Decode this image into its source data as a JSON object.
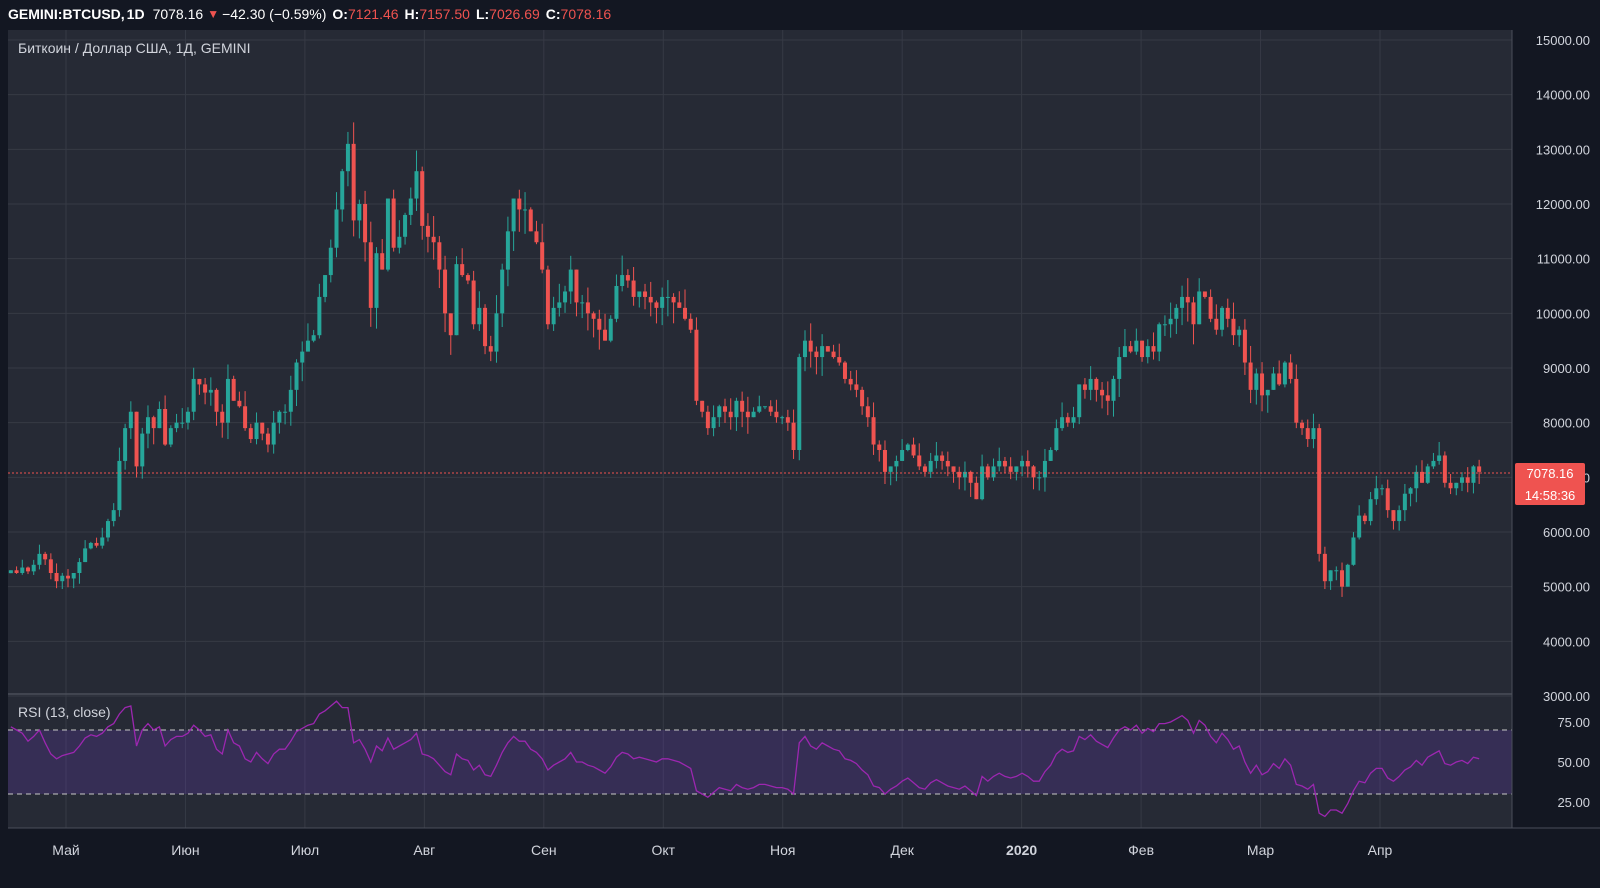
{
  "header": {
    "symbol": "GEMINI:BTCUSD,",
    "timeframe": "1D",
    "last": "7078.16",
    "change": "−42.30 (−0.59%)",
    "open_label": "O:",
    "open": "7121.46",
    "high_label": "H:",
    "high": "7157.50",
    "low_label": "L:",
    "low": "7026.69",
    "close_label": "C:",
    "close": "7078.16",
    "change_direction_icon": "triangle-down-icon"
  },
  "colors": {
    "background": "#131722",
    "up": "#26a69a",
    "down": "#ef5350",
    "grid": "#363a45",
    "text": "#d1d4dc",
    "rsi_line": "#9c27b0",
    "rsi_band": "rgba(103,58,183,0.25)"
  },
  "chart_data": [
    {
      "type": "candlestick",
      "title": "Биткоин / Доллар США, 1Д, GEMINI",
      "y_ticks": [
        "15000.00",
        "14000.00",
        "13000.00",
        "12000.00",
        "11000.00",
        "10000.00",
        "9000.00",
        "8000.00",
        "7000.00",
        "6000.00",
        "5000.00",
        "4000.00",
        "3000.00"
      ],
      "ylim": [
        3000,
        15000
      ],
      "x_ticks": [
        "Май",
        "Июн",
        "Июл",
        "Авг",
        "Сен",
        "Окт",
        "Ноя",
        "Дек",
        "2020",
        "Фев",
        "Мар",
        "Апр"
      ],
      "last_price_label": "7078.16",
      "countdown_label": "14:58:36",
      "grid": true,
      "closes": [
        5300,
        5250,
        5350,
        5280,
        5400,
        5600,
        5500,
        5250,
        5100,
        5200,
        5150,
        5250,
        5450,
        5700,
        5800,
        5750,
        5900,
        6200,
        6400,
        7300,
        7900,
        8200,
        7200,
        7800,
        8100,
        7900,
        8250,
        7600,
        7900,
        8000,
        8000,
        8200,
        8800,
        8700,
        8550,
        8600,
        8200,
        8000,
        8800,
        8400,
        8300,
        7900,
        7700,
        8000,
        7800,
        7600,
        8000,
        8200,
        8200,
        8600,
        9100,
        9300,
        9500,
        9600,
        10300,
        10700,
        11200,
        11900,
        12600,
        13100,
        11700,
        12000,
        11300,
        10100,
        11100,
        10800,
        12100,
        11200,
        11400,
        11800,
        12100,
        12600,
        11600,
        11400,
        11300,
        10800,
        10000,
        9600,
        10900,
        10700,
        10600,
        9800,
        10100,
        9400,
        9300,
        10000,
        10800,
        11500,
        12100,
        11900,
        11900,
        11500,
        11300,
        10800,
        9800,
        10100,
        10200,
        10400,
        10800,
        10200,
        10200,
        10000,
        9900,
        9700,
        9500,
        9900,
        10500,
        10700,
        10600,
        10300,
        10400,
        10300,
        10200,
        10100,
        10300,
        10300,
        10200,
        10100,
        9900,
        9700,
        8400,
        8200,
        7900,
        8100,
        8300,
        8200,
        8100,
        8400,
        8200,
        8100,
        8200,
        8300,
        8300,
        8200,
        8100,
        8100,
        8000,
        7500,
        9200,
        9500,
        9300,
        9200,
        9400,
        9300,
        9200,
        9100,
        8800,
        8700,
        8600,
        8300,
        8100,
        7600,
        7500,
        7100,
        7200,
        7300,
        7500,
        7600,
        7400,
        7200,
        7100,
        7300,
        7400,
        7300,
        7200,
        7100,
        7000,
        7100,
        6900,
        6600,
        7200,
        7000,
        7200,
        7300,
        7200,
        7100,
        7200,
        7300,
        7200,
        7000,
        7000,
        7300,
        7500,
        7900,
        8100,
        8000,
        8100,
        8700,
        8600,
        8800,
        8600,
        8500,
        8400,
        8800,
        9200,
        9400,
        9300,
        9500,
        9200,
        9400,
        9300,
        9800,
        9800,
        9900,
        10100,
        10300,
        10200,
        9800,
        10400,
        10300,
        9900,
        9700,
        10100,
        9900,
        9600,
        9700,
        9100,
        8600,
        8900,
        8500,
        8600,
        8900,
        8700,
        9100,
        8800,
        8000,
        7900,
        7700,
        7900,
        5600,
        5100,
        5300,
        5300,
        5000,
        5400,
        5900,
        6300,
        6200,
        6600,
        6800,
        6800,
        6400,
        6200,
        6400,
        6700,
        6800,
        7100,
        6900,
        7200,
        7300,
        7400,
        6900,
        6800,
        6900,
        7000,
        6900,
        7200,
        7100
      ],
      "notable_points": {
        "all_time_high_on_chart": 13800,
        "lowest_wick": 3900
      }
    },
    {
      "type": "line",
      "title": "RSI (13, close)",
      "y_ticks": [
        "75.00",
        "50.00",
        "25.00"
      ],
      "ylim": [
        10,
        90
      ],
      "band": [
        30,
        70
      ],
      "values": [
        72,
        70,
        68,
        63,
        66,
        70,
        62,
        55,
        52,
        54,
        55,
        56,
        60,
        65,
        67,
        66,
        68,
        72,
        74,
        80,
        84,
        85,
        60,
        70,
        74,
        70,
        72,
        60,
        64,
        66,
        66,
        68,
        73,
        70,
        66,
        67,
        58,
        55,
        70,
        62,
        60,
        52,
        50,
        56,
        52,
        49,
        55,
        58,
        58,
        63,
        69,
        71,
        73,
        74,
        80,
        82,
        85,
        88,
        84,
        84,
        62,
        64,
        58,
        50,
        60,
        57,
        65,
        58,
        60,
        62,
        64,
        68,
        55,
        54,
        52,
        48,
        44,
        42,
        55,
        52,
        51,
        45,
        48,
        42,
        41,
        48,
        56,
        62,
        66,
        63,
        63,
        58,
        56,
        52,
        45,
        48,
        50,
        52,
        56,
        50,
        50,
        48,
        47,
        45,
        43,
        47,
        53,
        56,
        55,
        52,
        53,
        52,
        51,
        50,
        52,
        52,
        51,
        50,
        48,
        46,
        32,
        30,
        28,
        31,
        34,
        33,
        32,
        36,
        34,
        33,
        34,
        36,
        36,
        35,
        34,
        34,
        33,
        30,
        62,
        66,
        60,
        58,
        62,
        60,
        58,
        57,
        52,
        51,
        49,
        45,
        42,
        35,
        34,
        30,
        33,
        35,
        38,
        40,
        37,
        34,
        33,
        37,
        39,
        37,
        35,
        34,
        33,
        35,
        32,
        29,
        41,
        38,
        41,
        43,
        41,
        40,
        41,
        43,
        41,
        38,
        38,
        44,
        48,
        55,
        58,
        56,
        57,
        66,
        64,
        67,
        63,
        61,
        59,
        65,
        70,
        72,
        70,
        73,
        68,
        71,
        69,
        74,
        74,
        75,
        77,
        79,
        76,
        68,
        76,
        73,
        66,
        62,
        68,
        64,
        58,
        60,
        50,
        43,
        48,
        42,
        44,
        49,
        46,
        52,
        48,
        36,
        35,
        33,
        36,
        18,
        16,
        20,
        20,
        18,
        24,
        32,
        38,
        37,
        43,
        46,
        46,
        40,
        38,
        41,
        45,
        47,
        51,
        48,
        53,
        55,
        57,
        49,
        48,
        50,
        51,
        49,
        53,
        52
      ]
    }
  ]
}
